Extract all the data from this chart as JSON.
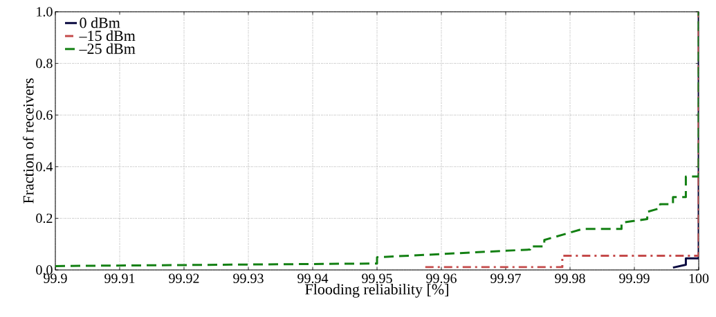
{
  "chart_data": {
    "type": "line",
    "xlabel": "Flooding reliability [%]",
    "ylabel": "Fraction of receivers",
    "xlim": [
      99.9,
      100
    ],
    "ylim": [
      0,
      1
    ],
    "xticks": [
      99.9,
      99.91,
      99.92,
      99.93,
      99.94,
      99.95,
      99.96,
      99.97,
      99.98,
      99.99,
      100
    ],
    "yticks": [
      {
        "value": 0,
        "label": "0.0"
      },
      {
        "value": 0.2,
        "label": "0.2"
      },
      {
        "value": 0.4,
        "label": "0.4"
      },
      {
        "value": 0.6,
        "label": "0.6"
      },
      {
        "value": 0.8,
        "label": "0.8"
      },
      {
        "value": 1,
        "label": "1.0"
      }
    ],
    "grid": true,
    "legend": "top left",
    "marker": "none",
    "series": [
      {
        "name": "0 dBm",
        "color": "#0a0a40",
        "line_style": "solid",
        "x": [
          99.996,
          99.998,
          99.998,
          100,
          100
        ],
        "values": [
          0.009,
          0.02,
          0.045,
          0.045,
          1
        ]
      },
      {
        "name": "–15 dBm",
        "color": "#c44a4a",
        "line_style": "dashdot",
        "x": [
          99.9575,
          99.9788,
          99.9788,
          100,
          100
        ],
        "values": [
          0.011,
          0.011,
          0.055,
          0.055,
          1
        ]
      },
      {
        "name": "–25 dBm",
        "color": "#138013",
        "line_style": "dashed",
        "x": [
          99.9,
          99.95,
          99.95,
          99.9738,
          99.9738,
          99.976,
          99.976,
          99.982,
          99.988,
          99.988,
          99.992,
          99.992,
          99.994,
          99.994,
          99.996,
          99.996,
          99.998,
          99.998,
          100,
          100
        ],
        "values": [
          0.015,
          0.025,
          0.049,
          0.079,
          0.091,
          0.091,
          0.116,
          0.159,
          0.159,
          0.183,
          0.197,
          0.225,
          0.239,
          0.255,
          0.255,
          0.282,
          0.282,
          0.362,
          0.362,
          1
        ]
      }
    ]
  }
}
